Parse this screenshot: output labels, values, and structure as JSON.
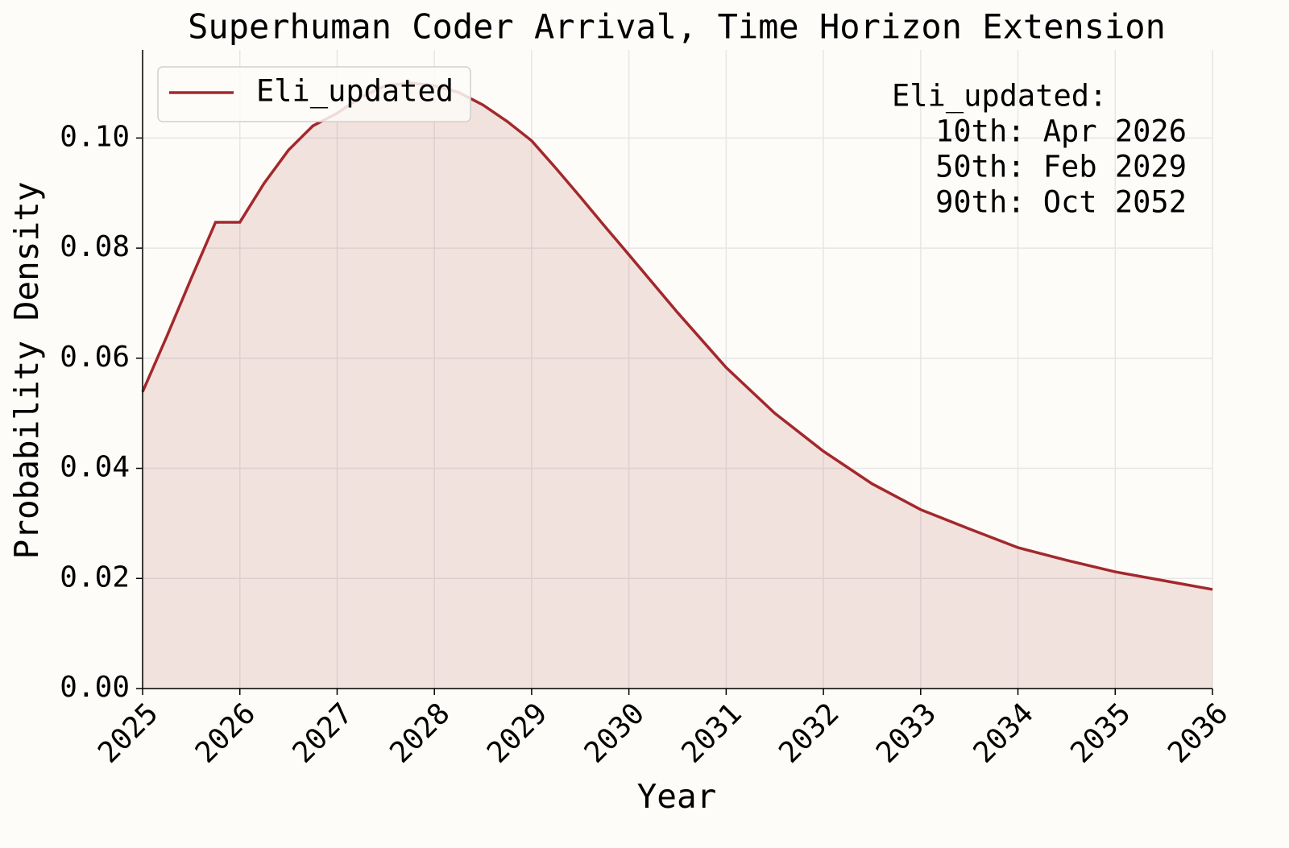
{
  "chart_data": {
    "type": "line",
    "title": "Superhuman Coder Arrival, Time Horizon Extension",
    "xlabel": "Year",
    "ylabel": "Probability Density",
    "x": [
      2025,
      2025.25,
      2025.5,
      2025.75,
      2026,
      2026.25,
      2026.5,
      2026.75,
      2027,
      2027.25,
      2027.5,
      2027.75,
      2028,
      2028.25,
      2028.5,
      2028.75,
      2029,
      2029.25,
      2029.5,
      2029.75,
      2030,
      2030.5,
      2031,
      2031.5,
      2032,
      2032.5,
      2033,
      2033.5,
      2034,
      2034.5,
      2035,
      2035.5,
      2036
    ],
    "series": [
      {
        "name": "Eli_updated",
        "color": "#a3282c",
        "values": [
          0.0539,
          0.064,
          0.0745,
          0.0847,
          0.0847,
          0.0918,
          0.0978,
          0.1022,
          0.1045,
          0.1075,
          0.1095,
          0.11,
          0.1095,
          0.1083,
          0.106,
          0.103,
          0.0995,
          0.0945,
          0.0893,
          0.084,
          0.0788,
          0.0683,
          0.0583,
          0.05,
          0.0431,
          0.0372,
          0.0325,
          0.029,
          0.0256,
          0.0233,
          0.0212,
          0.0196,
          0.018
        ]
      }
    ],
    "xlim": [
      2025,
      2036
    ],
    "ylim": [
      0,
      0.116
    ],
    "xticks": [
      2025,
      2026,
      2027,
      2028,
      2029,
      2030,
      2031,
      2032,
      2033,
      2034,
      2035,
      2036
    ],
    "yticks": [
      {
        "value": 0,
        "label": "0.00"
      },
      {
        "value": 0.02,
        "label": "0.02"
      },
      {
        "value": 0.04,
        "label": "0.04"
      },
      {
        "value": 0.06,
        "label": "0.06"
      },
      {
        "value": 0.08,
        "label": "0.08"
      },
      {
        "value": 0.1,
        "label": "0.10"
      }
    ],
    "grid": true,
    "fill": true,
    "legend": "upper left",
    "annotation": {
      "title": "Eli_updated:",
      "lines": [
        "10th: Apr 2026",
        "50th: Feb 2029",
        "90th: Oct 2052"
      ]
    }
  }
}
